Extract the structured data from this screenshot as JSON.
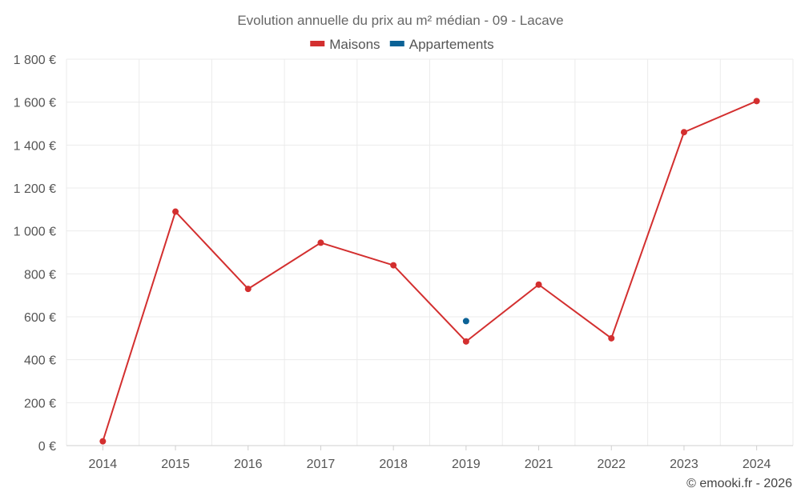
{
  "chart_data": {
    "type": "line",
    "title": "Evolution annuelle du prix au m² médian - 09 - Lacave",
    "categories": [
      "2014",
      "2015",
      "2016",
      "2017",
      "2018",
      "2019",
      "2021",
      "2022",
      "2023",
      "2024"
    ],
    "series": [
      {
        "name": "Maisons",
        "color": "#d32f2f",
        "values": [
          20,
          1090,
          730,
          945,
          840,
          485,
          750,
          500,
          1460,
          1605
        ]
      },
      {
        "name": "Appartements",
        "color": "#0b6296",
        "values": [
          null,
          null,
          null,
          null,
          null,
          580,
          null,
          null,
          null,
          null
        ]
      }
    ],
    "y_ticks": [
      {
        "value": 0,
        "label": "0 €"
      },
      {
        "value": 200,
        "label": "200 €"
      },
      {
        "value": 400,
        "label": "400 €"
      },
      {
        "value": 600,
        "label": "600 €"
      },
      {
        "value": 800,
        "label": "800 €"
      },
      {
        "value": 1000,
        "label": "1 000 €"
      },
      {
        "value": 1200,
        "label": "1 200 €"
      },
      {
        "value": 1400,
        "label": "1 400 €"
      },
      {
        "value": 1600,
        "label": "1 600 €"
      },
      {
        "value": 1800,
        "label": "1 800 €"
      }
    ],
    "ylim": [
      0,
      1800
    ],
    "grid": true,
    "legend_position": "top-center",
    "credit": "© emooki.fr - 2026"
  }
}
